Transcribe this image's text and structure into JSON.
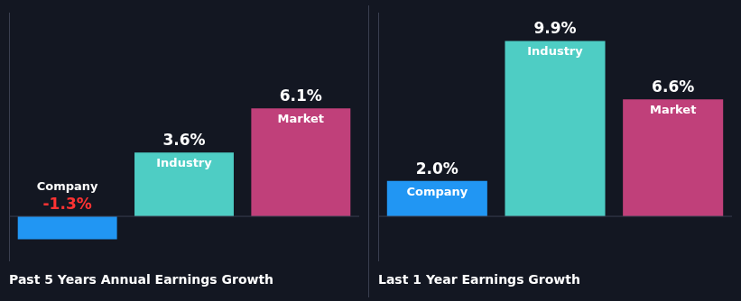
{
  "chart_data": [
    {
      "type": "bar",
      "title": "Past 5 Years Annual Earnings Growth",
      "categories": [
        "Company",
        "Industry",
        "Market"
      ],
      "values": [
        -1.3,
        3.6,
        6.1
      ],
      "value_labels": [
        "-1.3%",
        "3.6%",
        "6.1%"
      ],
      "colors": [
        "#2196f3",
        "#4ecdc4",
        "#c0407a"
      ],
      "ylim": [
        -2.5,
        11.5
      ],
      "grid": false,
      "data_labels": true,
      "tick_labels": false
    },
    {
      "type": "bar",
      "title": "Last 1 Year Earnings Growth",
      "categories": [
        "Company",
        "Industry",
        "Market"
      ],
      "values": [
        2.0,
        9.9,
        6.6
      ],
      "value_labels": [
        "2.0%",
        "9.9%",
        "6.6%"
      ],
      "colors": [
        "#2196f3",
        "#4ecdc4",
        "#c0407a"
      ],
      "ylim": [
        -2.5,
        11.5
      ],
      "grid": false,
      "data_labels": true,
      "tick_labels": false
    }
  ]
}
